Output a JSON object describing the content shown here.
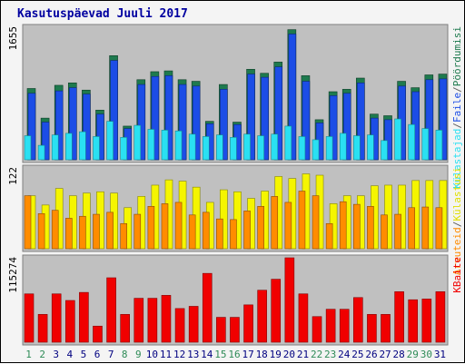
{
  "chart_data": {
    "type": "bar",
    "title": "Kasutuspäevad Juuli 2017",
    "categories": [
      "1",
      "2",
      "3",
      "4",
      "5",
      "6",
      "7",
      "8",
      "9",
      "10",
      "11",
      "12",
      "13",
      "14",
      "15",
      "16",
      "17",
      "18",
      "19",
      "20",
      "21",
      "22",
      "23",
      "24",
      "25",
      "26",
      "27",
      "28",
      "29",
      "30",
      "31"
    ],
    "weekend_days": [
      "1",
      "2",
      "8",
      "9",
      "15",
      "16",
      "22",
      "23",
      "29",
      "30"
    ],
    "panels": [
      {
        "name": "top",
        "ymax_label": "1655",
        "ymax": 1655,
        "side_legend": [
          "Külastajad",
          "/",
          "Faile",
          "/",
          "Pöördumisi"
        ],
        "series": [
          {
            "name": "Pöördumisi",
            "color": "#1e7a4e",
            "values": [
              890,
              520,
              930,
              960,
              870,
              620,
              1300,
              420,
              1000,
              1100,
              1110,
              1000,
              980,
              480,
              940,
              470,
              1130,
              1080,
              1220,
              1625,
              1050,
              500,
              850,
              880,
              1020,
              570,
              550,
              980,
              900,
              1060,
              1070
            ]
          },
          {
            "name": "Faile",
            "color": "#1c4de6",
            "values": [
              830,
              470,
              860,
              900,
              820,
              570,
              1240,
              390,
              940,
              1040,
              1050,
              940,
              920,
              450,
              880,
              440,
              1070,
              1030,
              1160,
              1570,
              980,
              460,
              800,
              830,
              960,
              520,
              500,
              920,
              850,
              1000,
              1010
            ]
          },
          {
            "name": "Külastajad",
            "color": "#2ae0f2",
            "values": [
              300,
              180,
              310,
              330,
              350,
              290,
              480,
              280,
              430,
              380,
              370,
              360,
              320,
              290,
              310,
              280,
              320,
              300,
              320,
              420,
              290,
              250,
              290,
              330,
              300,
              310,
              240,
              510,
              440,
              390,
              370
            ]
          }
        ]
      },
      {
        "name": "middle",
        "ymax_label": "122",
        "ymax": 122,
        "side_legend": [
          "Arvuteid",
          "/",
          "Külastusi"
        ],
        "series": [
          {
            "name": "Külastusi",
            "color": "#f5f500",
            "values": [
              80,
              66,
              91,
              80,
              84,
              86,
              84,
              62,
              79,
              96,
              104,
              102,
              93,
              70,
              89,
              86,
              76,
              87,
              109,
              106,
              113,
              111,
              68,
              80,
              80,
              95,
              96,
              96,
              103,
              103,
              103
            ]
          },
          {
            "name": "Arvuteid",
            "color": "#ff8c00",
            "values": [
              80,
              53,
              58,
              46,
              49,
              52,
              55,
              38,
              52,
              64,
              68,
              70,
              51,
              55,
              45,
              44,
              57,
              64,
              79,
              70,
              87,
              80,
              38,
              71,
              67,
              64,
              51,
              52,
              62,
              63,
              62
            ]
          }
        ]
      },
      {
        "name": "bottom",
        "ymax_label": "115274",
        "ymax": 115274,
        "side_legend": [
          "KBaite"
        ],
        "series": [
          {
            "name": "KBaite",
            "color": "#f00000",
            "values": [
              66000,
              38000,
              66000,
              57000,
              68000,
              22000,
              88000,
              38000,
              60000,
              60000,
              64000,
              46000,
              49000,
              94000,
              34000,
              34000,
              51000,
              71000,
              86000,
              115274,
              66000,
              35000,
              45000,
              45000,
              61000,
              38000,
              38000,
              69000,
              58000,
              59000,
              69000
            ]
          }
        ]
      }
    ]
  }
}
